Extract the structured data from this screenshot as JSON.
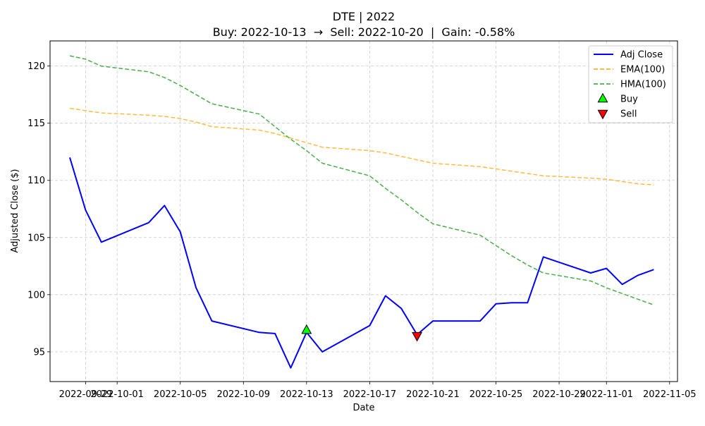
{
  "chart_data": {
    "type": "line",
    "title": "DTE | 2022",
    "subtitle": "Buy: 2022-10-13  →  Sell: 2022-10-20  |  Gain: -0.58%",
    "xlabel": "Date",
    "ylabel": "Adjusted Close ($)",
    "xlim": [
      "2022-09-26T18:00",
      "2022-11-05T12:00"
    ],
    "ylim": [
      92.4,
      122.2
    ],
    "grid": true,
    "legend_position": "top-right",
    "x_ticks": [
      {
        "date": "2022-09-29",
        "label": "2022-09-29"
      },
      {
        "date": "2022-10-01",
        "label": "2022-10-01"
      },
      {
        "date": "2022-10-05",
        "label": "2022-10-05"
      },
      {
        "date": "2022-10-09",
        "label": "2022-10-09"
      },
      {
        "date": "2022-10-13",
        "label": "2022-10-13"
      },
      {
        "date": "2022-10-17",
        "label": "2022-10-17"
      },
      {
        "date": "2022-10-21",
        "label": "2022-10-21"
      },
      {
        "date": "2022-10-25",
        "label": "2022-10-25"
      },
      {
        "date": "2022-10-29",
        "label": "2022-10-29"
      },
      {
        "date": "2022-11-01",
        "label": "2022-11-01"
      },
      {
        "date": "2022-11-05",
        "label": "2022-11-05"
      }
    ],
    "y_ticks": [
      95,
      100,
      105,
      110,
      115,
      120
    ],
    "series": [
      {
        "name": "Adj Close",
        "color": "#0000ff",
        "style": "solid",
        "points": [
          [
            "2022-09-28",
            112.0
          ],
          [
            "2022-09-29",
            107.4
          ],
          [
            "2022-09-30",
            104.6
          ],
          [
            "2022-10-03",
            106.3
          ],
          [
            "2022-10-04",
            107.8
          ],
          [
            "2022-10-05",
            105.5
          ],
          [
            "2022-10-06",
            100.6
          ],
          [
            "2022-10-07",
            97.7
          ],
          [
            "2022-10-10",
            96.7
          ],
          [
            "2022-10-11",
            96.6
          ],
          [
            "2022-10-12",
            93.6
          ],
          [
            "2022-10-13",
            96.7
          ],
          [
            "2022-10-14",
            95.0
          ],
          [
            "2022-10-17",
            97.3
          ],
          [
            "2022-10-18",
            99.9
          ],
          [
            "2022-10-19",
            98.8
          ],
          [
            "2022-10-20",
            96.5
          ],
          [
            "2022-10-21",
            97.7
          ],
          [
            "2022-10-24",
            97.7
          ],
          [
            "2022-10-25",
            99.2
          ],
          [
            "2022-10-26",
            99.3
          ],
          [
            "2022-10-27",
            99.3
          ],
          [
            "2022-10-28",
            103.3
          ],
          [
            "2022-10-31",
            101.9
          ],
          [
            "2022-11-01",
            102.3
          ],
          [
            "2022-11-02",
            100.9
          ],
          [
            "2022-11-03",
            101.7
          ],
          [
            "2022-11-04",
            102.2
          ]
        ]
      },
      {
        "name": "EMA(100)",
        "color": "#ffa500",
        "style": "dashed",
        "points": [
          [
            "2022-09-28",
            116.3
          ],
          [
            "2022-09-29",
            116.1
          ],
          [
            "2022-09-30",
            115.9
          ],
          [
            "2022-10-03",
            115.7
          ],
          [
            "2022-10-04",
            115.6
          ],
          [
            "2022-10-05",
            115.4
          ],
          [
            "2022-10-06",
            115.1
          ],
          [
            "2022-10-07",
            114.7
          ],
          [
            "2022-10-10",
            114.4
          ],
          [
            "2022-10-11",
            114.1
          ],
          [
            "2022-10-12",
            113.7
          ],
          [
            "2022-10-13",
            113.3
          ],
          [
            "2022-10-14",
            112.9
          ],
          [
            "2022-10-17",
            112.6
          ],
          [
            "2022-10-18",
            112.4
          ],
          [
            "2022-10-19",
            112.1
          ],
          [
            "2022-10-20",
            111.8
          ],
          [
            "2022-10-21",
            111.5
          ],
          [
            "2022-10-24",
            111.2
          ],
          [
            "2022-10-25",
            111.0
          ],
          [
            "2022-10-26",
            110.8
          ],
          [
            "2022-10-27",
            110.6
          ],
          [
            "2022-10-28",
            110.4
          ],
          [
            "2022-10-31",
            110.2
          ],
          [
            "2022-11-01",
            110.1
          ],
          [
            "2022-11-02",
            109.9
          ],
          [
            "2022-11-03",
            109.7
          ],
          [
            "2022-11-04",
            109.6
          ]
        ]
      },
      {
        "name": "HMA(100)",
        "color": "#2ca02c",
        "style": "dashed",
        "points": [
          [
            "2022-09-28",
            120.9
          ],
          [
            "2022-09-29",
            120.6
          ],
          [
            "2022-09-30",
            120.0
          ],
          [
            "2022-10-03",
            119.5
          ],
          [
            "2022-10-04",
            119.0
          ],
          [
            "2022-10-05",
            118.3
          ],
          [
            "2022-10-06",
            117.5
          ],
          [
            "2022-10-07",
            116.7
          ],
          [
            "2022-10-10",
            115.8
          ],
          [
            "2022-10-11",
            114.7
          ],
          [
            "2022-10-12",
            113.6
          ],
          [
            "2022-10-13",
            112.6
          ],
          [
            "2022-10-14",
            111.5
          ],
          [
            "2022-10-17",
            110.4
          ],
          [
            "2022-10-18",
            109.3
          ],
          [
            "2022-10-19",
            108.3
          ],
          [
            "2022-10-20",
            107.2
          ],
          [
            "2022-10-21",
            106.2
          ],
          [
            "2022-10-24",
            105.2
          ],
          [
            "2022-10-25",
            104.3
          ],
          [
            "2022-10-26",
            103.4
          ],
          [
            "2022-10-27",
            102.6
          ],
          [
            "2022-10-28",
            101.9
          ],
          [
            "2022-10-31",
            101.2
          ],
          [
            "2022-11-01",
            100.6
          ],
          [
            "2022-11-02",
            100.1
          ],
          [
            "2022-11-03",
            99.6
          ],
          [
            "2022-11-04",
            99.1
          ]
        ]
      }
    ],
    "markers": [
      {
        "name": "Buy",
        "date": "2022-10-13",
        "value": 96.9,
        "shape": "triangle-up",
        "color": "#00ff00"
      },
      {
        "name": "Sell",
        "date": "2022-10-20",
        "value": 96.4,
        "shape": "triangle-down",
        "color": "#ff0000"
      }
    ]
  }
}
